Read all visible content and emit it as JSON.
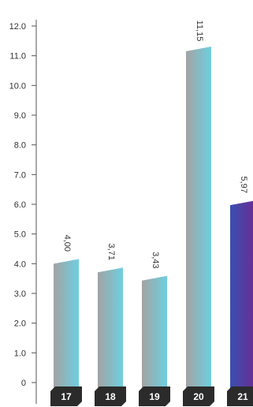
{
  "chart_data": {
    "type": "bar",
    "categories": [
      "17",
      "18",
      "19",
      "20",
      "21"
    ],
    "values": [
      4.0,
      3.71,
      3.43,
      11.15,
      5.97
    ],
    "value_labels": [
      "4,00",
      "3,71",
      "3,43",
      "11,15",
      "5,97"
    ],
    "y_ticks": [
      0,
      1,
      2,
      3,
      4,
      5,
      6,
      7,
      8,
      9,
      10,
      11,
      12
    ],
    "y_tick_labels": [
      "0",
      "1.0",
      "2.0",
      "3.0",
      "4.0",
      "5.0",
      "6.0",
      "7.0",
      "8.0",
      "9.0",
      "10.0",
      "11.0",
      "12.0"
    ],
    "ylim": [
      0,
      12
    ],
    "grid": false,
    "title": "",
    "xlabel": "",
    "ylabel": "",
    "colors": {
      "bar_gradient_start": "#a3a3a3",
      "bar_gradient_end": "#6ecfe0",
      "highlight_gradient_start": "#3a4fb0",
      "highlight_gradient_end": "#6a2d94",
      "category_badge": "#2b2b2b",
      "axis": "#555555",
      "tick_text": "#333333"
    },
    "highlight_index": 4
  }
}
